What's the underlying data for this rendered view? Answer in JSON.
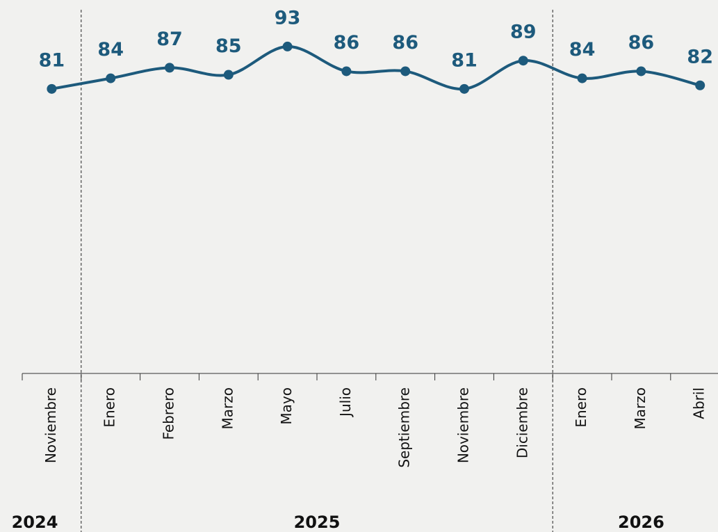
{
  "chart_data": {
    "type": "line",
    "categories": [
      "Noviembre",
      "Enero",
      "Febrero",
      "Marzo",
      "Mayo",
      "Julio",
      "Septiembre",
      "Noviembre",
      "Diciembre",
      "Enero",
      "Marzo",
      "Abril"
    ],
    "values": [
      81,
      84,
      87,
      85,
      93,
      86,
      86,
      81,
      89,
      84,
      86,
      82
    ],
    "color": "#1d5a7c",
    "ylim": [
      0,
      105
    ],
    "groups": [
      {
        "label": "2024",
        "span": 1
      },
      {
        "label": "2025",
        "span": 8
      },
      {
        "label": "2026",
        "span": 3
      }
    ]
  }
}
